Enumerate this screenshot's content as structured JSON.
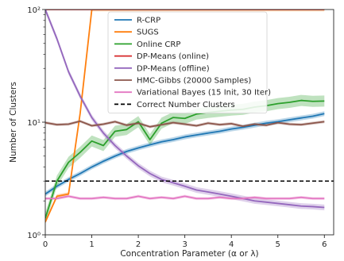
{
  "chart_data": {
    "type": "line",
    "xlabel": "Concentration Parameter (α or λ)",
    "ylabel": "Number of Clusters",
    "xlim": [
      0,
      6.2
    ],
    "ylim": [
      1,
      100
    ],
    "yscale": "log",
    "x_ticks": [
      0,
      1,
      2,
      3,
      4,
      5,
      6
    ],
    "x_tick_labels": [
      "0",
      "1",
      "2",
      "3",
      "4",
      "5",
      "6"
    ],
    "y_ticks": [
      1,
      10,
      100
    ],
    "y_tick_labels": [
      "10⁰",
      "10¹",
      "10²"
    ],
    "grid": false,
    "legend_position": "top-center",
    "series": [
      {
        "name": "R-CRP",
        "color": "#1f77b4",
        "band": 0.05,
        "x": [
          0,
          0.25,
          0.5,
          0.75,
          1.0,
          1.25,
          1.5,
          1.75,
          2.0,
          2.25,
          2.5,
          2.75,
          3.0,
          3.25,
          3.5,
          3.75,
          4.0,
          4.25,
          4.5,
          4.75,
          5.0,
          5.25,
          5.5,
          5.75,
          6.0
        ],
        "y": [
          2.3,
          2.7,
          3.1,
          3.5,
          4.0,
          4.5,
          5.0,
          5.5,
          5.9,
          6.3,
          6.7,
          7.0,
          7.4,
          7.7,
          8.0,
          8.3,
          8.7,
          9.0,
          9.4,
          9.8,
          10.1,
          10.5,
          10.9,
          11.3,
          11.9
        ]
      },
      {
        "name": "SUGS",
        "color": "#ff7f0e",
        "band": 0.04,
        "x": [
          0,
          0.25,
          0.5,
          0.75,
          1.0,
          1.25,
          1.5,
          2.0,
          3.0,
          4.0,
          5.0,
          6.0
        ],
        "y": [
          1.3,
          2.2,
          2.3,
          12.0,
          100,
          100,
          100,
          100,
          100,
          100,
          100,
          100
        ]
      },
      {
        "name": "Online CRP",
        "color": "#2ca02c",
        "band": 0.12,
        "x": [
          0,
          0.25,
          0.5,
          0.75,
          1.0,
          1.25,
          1.5,
          1.75,
          2.0,
          2.25,
          2.5,
          2.75,
          3.0,
          3.25,
          3.5,
          3.75,
          4.0,
          4.25,
          4.5,
          4.75,
          5.0,
          5.25,
          5.5,
          5.75,
          6.0
        ],
        "y": [
          1.4,
          3.0,
          4.4,
          5.4,
          6.8,
          6.2,
          8.3,
          8.6,
          10.1,
          7.0,
          9.8,
          11.0,
          10.8,
          11.8,
          12.2,
          12.5,
          12.8,
          13.0,
          13.6,
          14.0,
          14.6,
          15.0,
          15.6,
          15.3,
          15.4
        ]
      },
      {
        "name": "DP-Means (online)",
        "color": "#d62728",
        "band": 0.0,
        "x": [
          0,
          6.0
        ],
        "y": [
          100,
          100
        ]
      },
      {
        "name": "DP-Means (offline)",
        "color": "#9467bd",
        "band": 0.06,
        "x": [
          0,
          0.25,
          0.5,
          0.75,
          1.0,
          1.25,
          1.5,
          1.75,
          2.0,
          2.25,
          2.5,
          2.75,
          3.0,
          3.25,
          3.5,
          3.75,
          4.0,
          4.25,
          4.5,
          4.75,
          5.0,
          5.25,
          5.5,
          5.75,
          6.0
        ],
        "y": [
          100,
          55,
          28,
          17,
          11,
          8.0,
          6.2,
          5.0,
          4.1,
          3.5,
          3.1,
          2.9,
          2.7,
          2.5,
          2.4,
          2.3,
          2.2,
          2.1,
          2.0,
          1.95,
          1.9,
          1.85,
          1.8,
          1.78,
          1.75
        ]
      },
      {
        "name": "HMC-Gibbs (20000 Samples)",
        "color": "#8c564b",
        "band": 0.03,
        "x": [
          0,
          0.25,
          0.5,
          0.75,
          1.0,
          1.25,
          1.5,
          1.75,
          2.0,
          2.25,
          2.5,
          2.75,
          3.0,
          3.25,
          3.5,
          3.75,
          4.0,
          4.25,
          4.5,
          4.75,
          5.0,
          5.25,
          5.5,
          5.75,
          6.0
        ],
        "y": [
          9.9,
          9.5,
          9.6,
          10.2,
          9.3,
          9.6,
          10.1,
          9.4,
          9.8,
          9.1,
          9.5,
          9.9,
          9.6,
          9.3,
          9.8,
          9.5,
          9.7,
          9.2,
          9.6,
          9.4,
          9.9,
          9.6,
          9.5,
          9.8,
          10.1
        ]
      },
      {
        "name": "Variational Bayes (15 Init, 30 Iter)",
        "color": "#e377c2",
        "band": 0.03,
        "x": [
          0,
          0.25,
          0.5,
          0.75,
          1.0,
          1.25,
          1.5,
          1.75,
          2.0,
          2.25,
          2.5,
          2.75,
          3.0,
          3.25,
          3.5,
          3.75,
          4.0,
          4.25,
          4.5,
          4.75,
          5.0,
          5.25,
          5.5,
          5.75,
          6.0
        ],
        "y": [
          2.1,
          2.1,
          2.2,
          2.1,
          2.1,
          2.15,
          2.1,
          2.1,
          2.2,
          2.1,
          2.15,
          2.1,
          2.2,
          2.1,
          2.1,
          2.15,
          2.1,
          2.1,
          2.15,
          2.1,
          2.1,
          2.1,
          2.15,
          2.1,
          2.1
        ]
      }
    ],
    "reference_line": {
      "name": "Correct Number Clusters",
      "y": 3,
      "color": "#000000",
      "style": "dashed"
    }
  }
}
